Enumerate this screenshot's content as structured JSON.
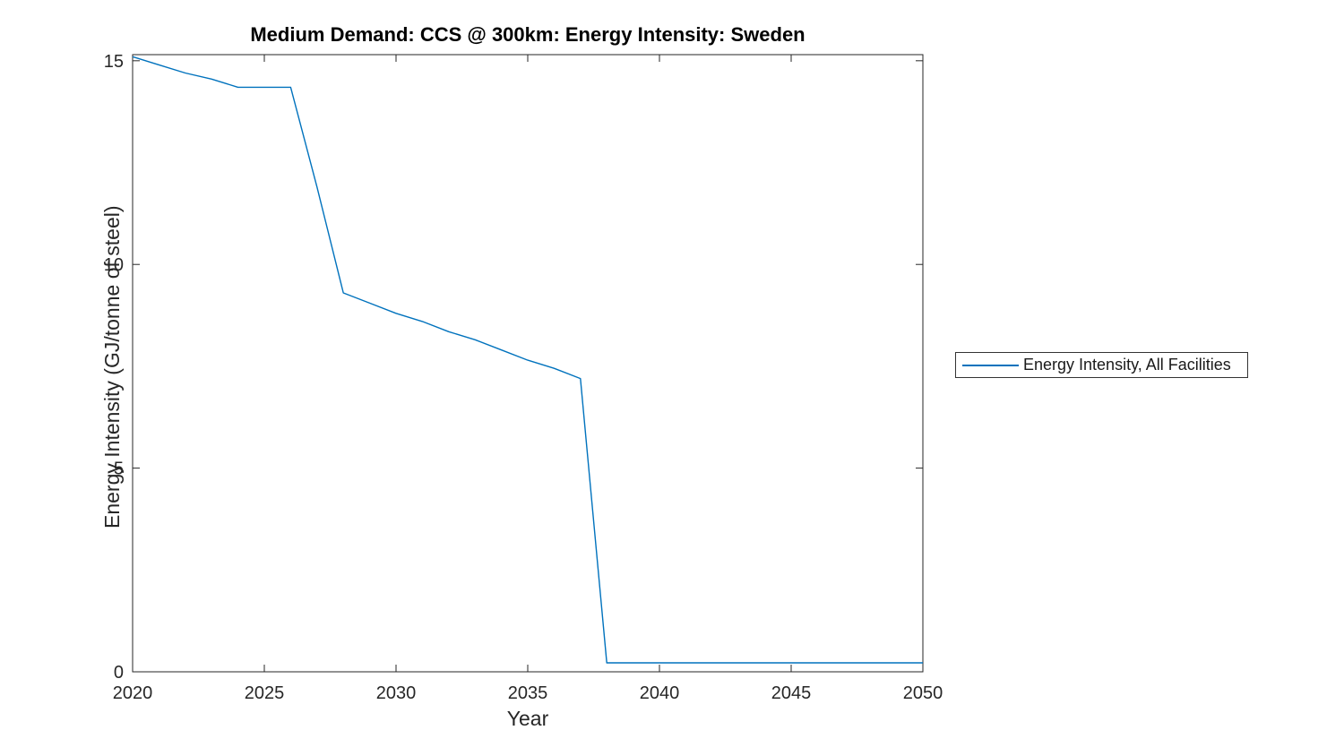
{
  "page": {
    "background": "#ffffff"
  },
  "chart_data": {
    "type": "line",
    "title": "Medium Demand: CCS @ 300km: Energy Intensity: Sweden",
    "xlabel": "Year",
    "ylabel": "Energy Intensity (GJ/tonne of steel)",
    "xlim": [
      2020,
      2050
    ],
    "ylim": [
      0,
      15.15
    ],
    "xticks": [
      2020,
      2025,
      2030,
      2035,
      2040,
      2045,
      2050
    ],
    "yticks": [
      0,
      5,
      10,
      15
    ],
    "grid": false,
    "frame_color": "#262626",
    "tick_label_color": "#262626",
    "legend": {
      "position": "outside-right",
      "entries": [
        {
          "label": "Energy Intensity, All Facilities",
          "color": "#0072BD"
        }
      ]
    },
    "series": [
      {
        "name": "Energy Intensity, All Facilities",
        "color": "#0072BD",
        "x": [
          2020,
          2021,
          2022,
          2023,
          2024,
          2025,
          2026,
          2027,
          2028,
          2029,
          2030,
          2031,
          2032,
          2033,
          2034,
          2035,
          2036,
          2037,
          2038,
          2039,
          2040,
          2041,
          2042,
          2043,
          2044,
          2045,
          2046,
          2047,
          2048,
          2049,
          2050
        ],
        "y": [
          15.1,
          14.9,
          14.7,
          14.55,
          14.35,
          14.35,
          14.35,
          11.9,
          9.3,
          9.05,
          8.8,
          8.6,
          8.35,
          8.15,
          7.9,
          7.65,
          7.45,
          7.2,
          0.22,
          0.22,
          0.22,
          0.22,
          0.22,
          0.22,
          0.22,
          0.22,
          0.22,
          0.22,
          0.22,
          0.22,
          0.22
        ]
      }
    ]
  }
}
